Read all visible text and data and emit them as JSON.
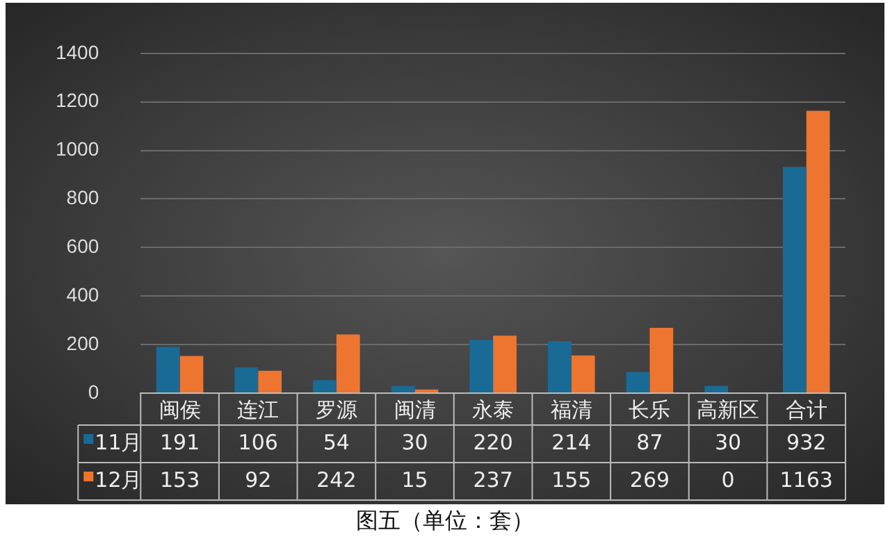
{
  "chart_data": {
    "type": "bar",
    "categories": [
      "闽侯",
      "连江",
      "罗源",
      "闽清",
      "永泰",
      "福清",
      "长乐",
      "高新区",
      "合计"
    ],
    "series": [
      {
        "name": "11月",
        "color": "#1a6a96",
        "values": [
          191,
          106,
          54,
          30,
          220,
          214,
          87,
          30,
          932
        ]
      },
      {
        "name": "12月",
        "color": "#ee7530",
        "values": [
          153,
          92,
          242,
          15,
          237,
          155,
          269,
          0,
          1163
        ]
      }
    ],
    "ylim": [
      0,
      1400
    ],
    "yticks": [
      0,
      200,
      400,
      600,
      800,
      1000,
      1200,
      1400
    ],
    "grid": "y",
    "legend": "bottom",
    "data_labels": true,
    "annotations": [
      "图五（单位：套）"
    ]
  }
}
